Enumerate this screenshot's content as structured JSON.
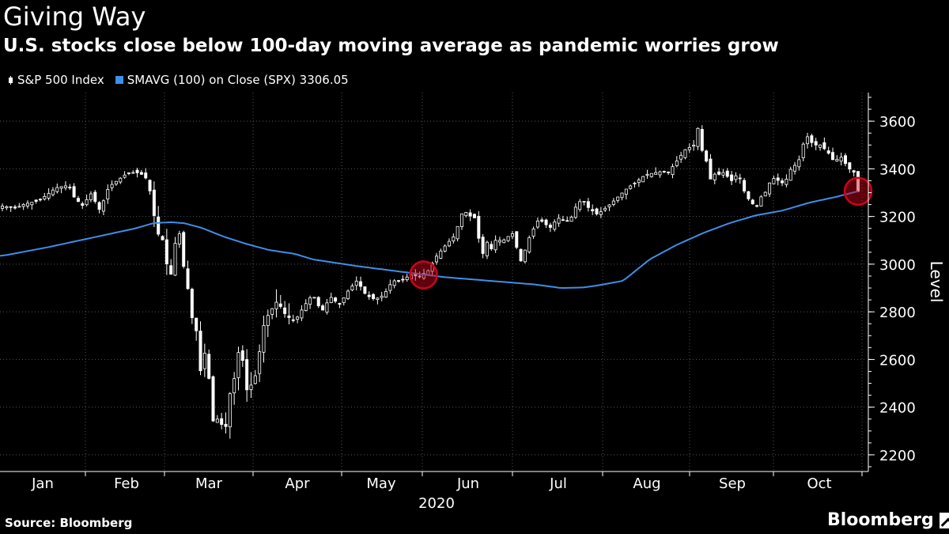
{
  "chart_data": {
    "type": "candlestick",
    "title": "Giving Way",
    "subtitle": "U.S. stocks close below 100-day moving average as pandemic worries grow",
    "legend": {
      "series1": "S&P 500 Index",
      "series2_name": "SMAVG (100)",
      "series2_suffix": " on Close (SPX) 3306.05"
    },
    "ylabel": "Level",
    "ylim": [
      2130,
      3720
    ],
    "yticks": [
      2200,
      2400,
      2600,
      2800,
      3000,
      3200,
      3400,
      3600
    ],
    "months": [
      "Jan",
      "Feb",
      "Mar",
      "Apr",
      "May",
      "Jun",
      "Jul",
      "Aug",
      "Sep",
      "Oct"
    ],
    "year_label": "2020",
    "grid": true,
    "colors": {
      "candles": "#ffffff",
      "moving_average": "#3d8fe8",
      "highlight": "#d0021b",
      "grid": "#555555"
    },
    "highlights": [
      {
        "index": 95,
        "value": 2955
      },
      {
        "index": 202,
        "value": 3306
      }
    ],
    "price_anchors": [
      [
        0,
        3244
      ],
      [
        3,
        3235
      ],
      [
        5,
        3253
      ],
      [
        8,
        3265
      ],
      [
        10,
        3290
      ],
      [
        12,
        3320
      ],
      [
        14,
        3328
      ],
      [
        15,
        3330
      ],
      [
        16,
        3285
      ],
      [
        18,
        3245
      ],
      [
        20,
        3296
      ],
      [
        22,
        3225
      ],
      [
        24,
        3325
      ],
      [
        26,
        3352
      ],
      [
        28,
        3380
      ],
      [
        30,
        3386
      ],
      [
        32,
        3373
      ],
      [
        33,
        3338
      ],
      [
        34,
        3226
      ],
      [
        35,
        3128
      ],
      [
        36,
        3116
      ],
      [
        37,
        3005
      ],
      [
        38,
        2954
      ],
      [
        39,
        3090
      ],
      [
        40,
        3130
      ],
      [
        41,
        2972
      ],
      [
        42,
        2882
      ],
      [
        43,
        2746
      ],
      [
        44,
        2711
      ],
      [
        45,
        2480
      ],
      [
        46,
        2711
      ],
      [
        47,
        2386
      ],
      [
        48,
        2304
      ],
      [
        49,
        2398
      ],
      [
        50,
        2237
      ],
      [
        51,
        2447
      ],
      [
        52,
        2475
      ],
      [
        53,
        2630
      ],
      [
        54,
        2626
      ],
      [
        55,
        2470
      ],
      [
        56,
        2489
      ],
      [
        57,
        2527
      ],
      [
        58,
        2633
      ],
      [
        59,
        2749
      ],
      [
        60,
        2789
      ],
      [
        62,
        2846
      ],
      [
        64,
        2783
      ],
      [
        66,
        2761
      ],
      [
        68,
        2823
      ],
      [
        70,
        2874
      ],
      [
        72,
        2799
      ],
      [
        74,
        2863
      ],
      [
        76,
        2830
      ],
      [
        78,
        2888
      ],
      [
        80,
        2932
      ],
      [
        82,
        2870
      ],
      [
        84,
        2852
      ],
      [
        86,
        2870
      ],
      [
        88,
        2930
      ],
      [
        90,
        2930
      ],
      [
        92,
        2955
      ],
      [
        94,
        2948
      ],
      [
        96,
        2972
      ],
      [
        98,
        3036
      ],
      [
        100,
        3080
      ],
      [
        102,
        3120
      ],
      [
        104,
        3232
      ],
      [
        105,
        3206
      ],
      [
        107,
        3190
      ],
      [
        108,
        3002
      ],
      [
        109,
        3113
      ],
      [
        110,
        3050
      ],
      [
        111,
        3100
      ],
      [
        113,
        3100
      ],
      [
        115,
        3130
      ],
      [
        117,
        3010
      ],
      [
        119,
        3120
      ],
      [
        121,
        3190
      ],
      [
        123,
        3160
      ],
      [
        124,
        3150
      ],
      [
        125,
        3200
      ],
      [
        126,
        3185
      ],
      [
        128,
        3180
      ],
      [
        129,
        3230
      ],
      [
        130,
        3260
      ],
      [
        131,
        3270
      ],
      [
        132,
        3240
      ],
      [
        134,
        3210
      ],
      [
        135,
        3220
      ],
      [
        137,
        3250
      ],
      [
        139,
        3285
      ],
      [
        141,
        3320
      ],
      [
        143,
        3345
      ],
      [
        145,
        3375
      ],
      [
        147,
        3383
      ],
      [
        149,
        3390
      ],
      [
        150,
        3380
      ],
      [
        152,
        3430
      ],
      [
        154,
        3480
      ],
      [
        156,
        3500
      ],
      [
        157,
        3580
      ],
      [
        158,
        3455
      ],
      [
        159,
        3426
      ],
      [
        160,
        3331
      ],
      [
        161,
        3400
      ],
      [
        162,
        3363
      ],
      [
        163,
        3400
      ],
      [
        164,
        3340
      ],
      [
        166,
        3383
      ],
      [
        167,
        3320
      ],
      [
        168,
        3280
      ],
      [
        170,
        3236
      ],
      [
        171,
        3280
      ],
      [
        172,
        3298
      ],
      [
        173,
        3340
      ],
      [
        174,
        3360
      ],
      [
        175,
        3351
      ],
      [
        176,
        3340
      ],
      [
        177,
        3360
      ],
      [
        178,
        3408
      ],
      [
        179,
        3417
      ],
      [
        180,
        3448
      ],
      [
        181,
        3535
      ],
      [
        182,
        3534
      ],
      [
        183,
        3490
      ],
      [
        184,
        3510
      ],
      [
        185,
        3488
      ],
      [
        186,
        3479
      ],
      [
        187,
        3440
      ],
      [
        188,
        3435
      ],
      [
        189,
        3455
      ],
      [
        190,
        3426
      ],
      [
        191,
        3400
      ],
      [
        192,
        3390
      ],
      [
        193,
        3306
      ]
    ],
    "sma_anchors": [
      [
        0,
        3035
      ],
      [
        10,
        3070
      ],
      [
        20,
        3110
      ],
      [
        30,
        3150
      ],
      [
        34,
        3172
      ],
      [
        38,
        3176
      ],
      [
        41,
        3172
      ],
      [
        45,
        3152
      ],
      [
        50,
        3115
      ],
      [
        55,
        3085
      ],
      [
        60,
        3060
      ],
      [
        66,
        3043
      ],
      [
        70,
        3020
      ],
      [
        80,
        2992
      ],
      [
        90,
        2968
      ],
      [
        100,
        2945
      ],
      [
        110,
        2930
      ],
      [
        120,
        2915
      ],
      [
        126,
        2900
      ],
      [
        131,
        2902
      ],
      [
        134,
        2910
      ],
      [
        140,
        2930
      ],
      [
        146,
        3020
      ],
      [
        152,
        3080
      ],
      [
        158,
        3130
      ],
      [
        164,
        3172
      ],
      [
        170,
        3205
      ],
      [
        176,
        3225
      ],
      [
        182,
        3258
      ],
      [
        188,
        3282
      ],
      [
        193,
        3306
      ]
    ]
  },
  "source": "Source: Bloomberg",
  "brand": "Bloomberg"
}
